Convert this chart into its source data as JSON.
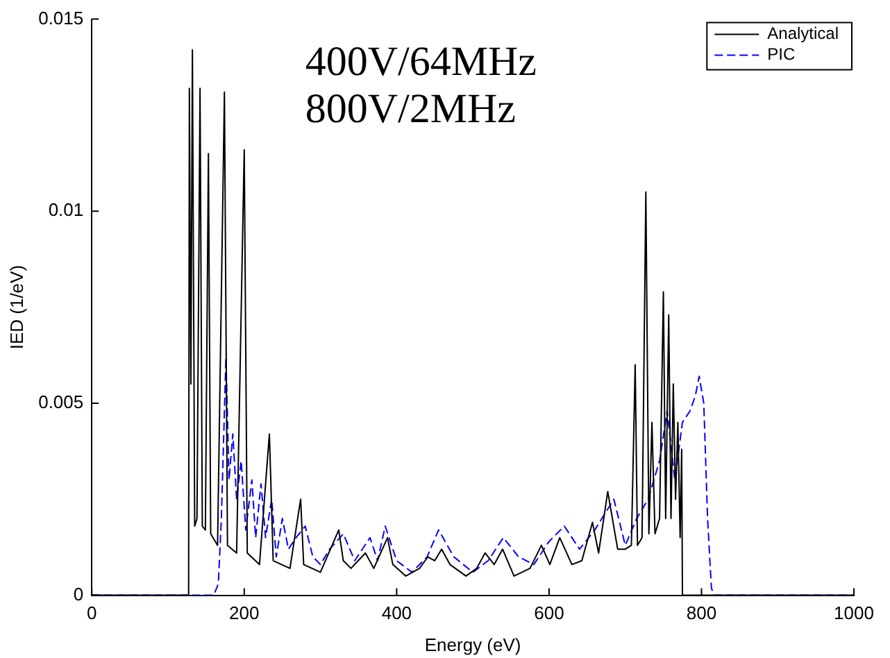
{
  "chart_data": {
    "type": "line",
    "xlabel": "Energy (eV)",
    "ylabel": "IED (1/eV)",
    "xlim": [
      0,
      1000
    ],
    "xticks": [
      0,
      200,
      400,
      600,
      800,
      1000
    ],
    "ylim": [
      0,
      0.015
    ],
    "yticks": [
      0,
      0.005,
      0.01,
      0.015
    ],
    "grid": false,
    "legend": "top right",
    "marker": "none",
    "annotations": [
      "400V/64MHz",
      "800V/2MHz"
    ],
    "series": [
      {
        "name": "Analytical",
        "color": "#000000",
        "line_style": "solid",
        "x": [
          0,
          127,
          128,
          130,
          132,
          135,
          138,
          142,
          145,
          149,
          153,
          156,
          165,
          174,
          178,
          190,
          200,
          204,
          220,
          233,
          238,
          260,
          274,
          278,
          300,
          324,
          330,
          340,
          359,
          370,
          388,
          395,
          412,
          430,
          441,
          450,
          459,
          470,
          491,
          505,
          516,
          528,
          539,
          554,
          575,
          590,
          601,
          614,
          630,
          643,
          657,
          665,
          677,
          690,
          700,
          708,
          713,
          716,
          722,
          727,
          731,
          735,
          739,
          745,
          750,
          753,
          757,
          760,
          763,
          766,
          769,
          772,
          774,
          775,
          1000
        ],
        "values": [
          0,
          0,
          0.0132,
          0.0055,
          0.0142,
          0.0018,
          0.002,
          0.0132,
          0.0018,
          0.0017,
          0.0115,
          0.0016,
          0.0013,
          0.0131,
          0.0013,
          0.0011,
          0.0116,
          0.0011,
          0.0008,
          0.0042,
          0.0009,
          0.0007,
          0.0025,
          0.0008,
          0.0006,
          0.0017,
          0.0009,
          0.0007,
          0.0011,
          0.0007,
          0.0015,
          0.0008,
          0.0005,
          0.0007,
          0.001,
          0.0009,
          0.0012,
          0.0008,
          0.0005,
          0.0007,
          0.0011,
          0.0008,
          0.0012,
          0.0005,
          0.0007,
          0.0013,
          0.0008,
          0.0015,
          0.0008,
          0.0009,
          0.0019,
          0.0011,
          0.0027,
          0.0012,
          0.0012,
          0.0013,
          0.006,
          0.0013,
          0.0015,
          0.0105,
          0.0016,
          0.0045,
          0.0016,
          0.002,
          0.0079,
          0.002,
          0.0073,
          0.002,
          0.0055,
          0.0025,
          0.0045,
          0.0015,
          0.0038,
          0,
          0
        ]
      },
      {
        "name": "PIC",
        "color": "#0000ff",
        "line_style": "dashed",
        "x": [
          0,
          160,
          166,
          170,
          176,
          180,
          185,
          190,
          196,
          202,
          210,
          215,
          222,
          228,
          236,
          242,
          250,
          258,
          268,
          280,
          290,
          300,
          312,
          330,
          345,
          365,
          375,
          385,
          400,
          420,
          440,
          455,
          475,
          500,
          520,
          540,
          560,
          580,
          600,
          620,
          640,
          660,
          685,
          700,
          715,
          730,
          745,
          755,
          765,
          775,
          785,
          792,
          797,
          803,
          808,
          813,
          816,
          1000
        ],
        "values": [
          0,
          0,
          0.0003,
          0.002,
          0.0062,
          0.003,
          0.0042,
          0.0025,
          0.0035,
          0.0017,
          0.003,
          0.0015,
          0.0029,
          0.0015,
          0.0025,
          0.001,
          0.002,
          0.0012,
          0.0015,
          0.0018,
          0.001,
          0.0008,
          0.0012,
          0.0016,
          0.0009,
          0.0015,
          0.0009,
          0.0018,
          0.0009,
          0.0006,
          0.001,
          0.0017,
          0.001,
          0.0006,
          0.0009,
          0.0015,
          0.001,
          0.0008,
          0.0014,
          0.0018,
          0.0012,
          0.0017,
          0.0025,
          0.0013,
          0.002,
          0.0025,
          0.0035,
          0.0048,
          0.003,
          0.0045,
          0.0048,
          0.0052,
          0.0057,
          0.005,
          0.002,
          0.0002,
          0,
          0
        ]
      }
    ]
  }
}
